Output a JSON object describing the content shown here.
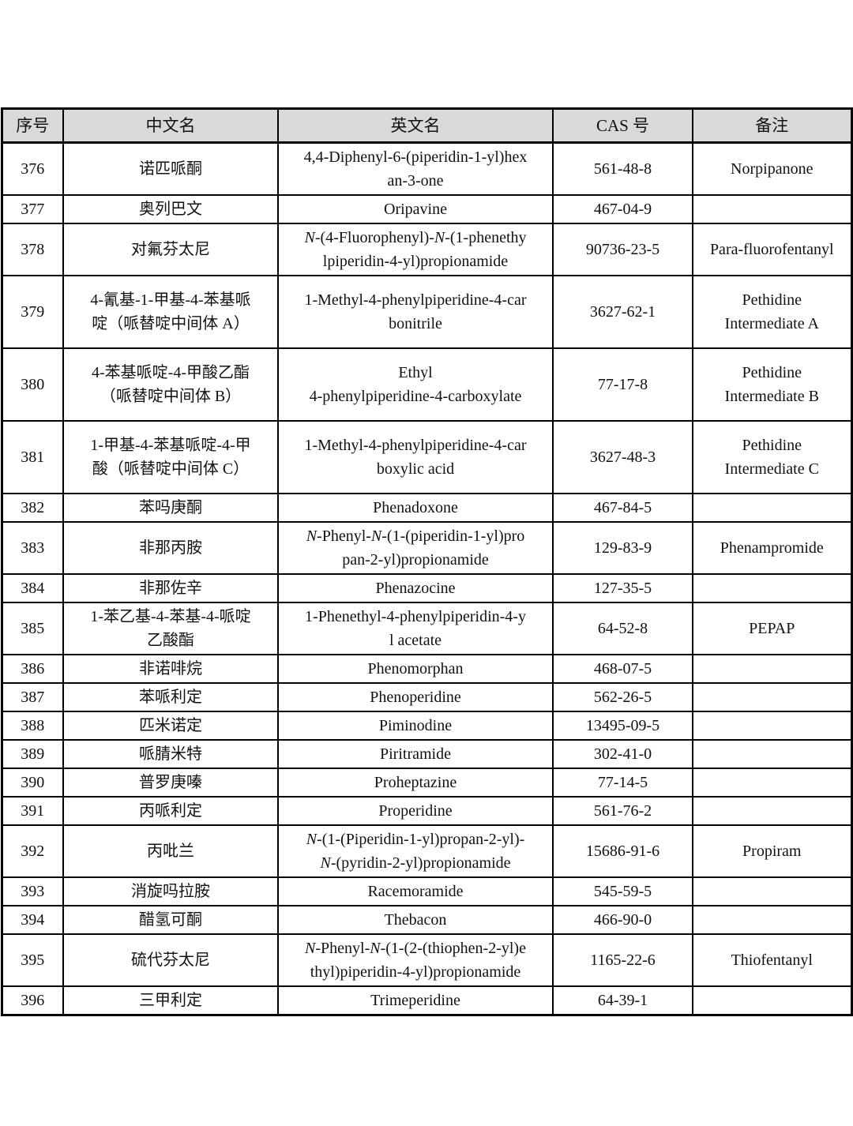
{
  "document": {
    "table": {
      "headers": [
        "序号",
        "中文名",
        "英文名",
        "CAS 号",
        "备注"
      ],
      "rows": [
        {
          "no": "376",
          "zh": [
            "诺匹哌酮"
          ],
          "en": [
            "4,4-Diphenyl-6-(piperidin-1-yl)hex",
            "an-3-one"
          ],
          "cas": "561-48-8",
          "remark": [
            "Norpipanone"
          ]
        },
        {
          "no": "377",
          "zh": [
            "奥列巴文"
          ],
          "en": [
            "Oripavine"
          ],
          "cas": "467-04-9",
          "remark": []
        },
        {
          "no": "378",
          "zh": [
            "对氟芬太尼"
          ],
          "en": [
            "N-(4-Fluorophenyl)-N-(1-phenethy",
            "lpiperidin-4-yl)propionamide"
          ],
          "cas": "90736-23-5",
          "remark": [
            "Para-fluorofentanyl"
          ]
        },
        {
          "no": "379",
          "zh": [
            "4-氰基-1-甲基-4-苯基哌",
            "啶（哌替啶中间体 A）"
          ],
          "en": [
            "1-Methyl-4-phenylpiperidine-4-car",
            "bonitrile"
          ],
          "cas": "3627-62-1",
          "remark": [
            "Pethidine",
            "Intermediate A"
          ]
        },
        {
          "no": "380",
          "zh": [
            "4-苯基哌啶-4-甲酸乙酯",
            "（哌替啶中间体 B）"
          ],
          "en": [
            "Ethyl",
            "4-phenylpiperidine-4-carboxylate"
          ],
          "cas": "77-17-8",
          "remark": [
            "Pethidine",
            "Intermediate B"
          ]
        },
        {
          "no": "381",
          "zh": [
            "1-甲基-4-苯基哌啶-4-甲",
            "酸（哌替啶中间体 C）"
          ],
          "en": [
            "1-Methyl-4-phenylpiperidine-4-car",
            "boxylic acid"
          ],
          "cas": "3627-48-3",
          "remark": [
            "Pethidine",
            "Intermediate C"
          ]
        },
        {
          "no": "382",
          "zh": [
            "苯吗庚酮"
          ],
          "en": [
            "Phenadoxone"
          ],
          "cas": "467-84-5",
          "remark": []
        },
        {
          "no": "383",
          "zh": [
            "非那丙胺"
          ],
          "en": [
            "N-Phenyl-N-(1-(piperidin-1-yl)pro",
            "pan-2-yl)propionamide"
          ],
          "cas": "129-83-9",
          "remark": [
            "Phenampromide"
          ]
        },
        {
          "no": "384",
          "zh": [
            "非那佐辛"
          ],
          "en": [
            "Phenazocine"
          ],
          "cas": "127-35-5",
          "remark": []
        },
        {
          "no": "385",
          "zh": [
            "1-苯乙基-4-苯基-4-哌啶",
            "乙酸酯"
          ],
          "en": [
            "1-Phenethyl-4-phenylpiperidin-4-y",
            "l acetate"
          ],
          "cas": "64-52-8",
          "remark": [
            "PEPAP"
          ]
        },
        {
          "no": "386",
          "zh": [
            "非诺啡烷"
          ],
          "en": [
            "Phenomorphan"
          ],
          "cas": "468-07-5",
          "remark": []
        },
        {
          "no": "387",
          "zh": [
            "苯哌利定"
          ],
          "en": [
            "Phenoperidine"
          ],
          "cas": "562-26-5",
          "remark": []
        },
        {
          "no": "388",
          "zh": [
            "匹米诺定"
          ],
          "en": [
            "Piminodine"
          ],
          "cas": "13495-09-5",
          "remark": []
        },
        {
          "no": "389",
          "zh": [
            "哌腈米特"
          ],
          "en": [
            "Piritramide"
          ],
          "cas": "302-41-0",
          "remark": []
        },
        {
          "no": "390",
          "zh": [
            "普罗庚嗪"
          ],
          "en": [
            "Proheptazine"
          ],
          "cas": "77-14-5",
          "remark": []
        },
        {
          "no": "391",
          "zh": [
            "丙哌利定"
          ],
          "en": [
            "Properidine"
          ],
          "cas": "561-76-2",
          "remark": []
        },
        {
          "no": "392",
          "zh": [
            "丙吡兰"
          ],
          "en": [
            "N-(1-(Piperidin-1-yl)propan-2-yl)-",
            "N-(pyridin-2-yl)propionamide"
          ],
          "cas": "15686-91-6",
          "remark": [
            "Propiram"
          ]
        },
        {
          "no": "393",
          "zh": [
            "消旋吗拉胺"
          ],
          "en": [
            "Racemoramide"
          ],
          "cas": "545-59-5",
          "remark": []
        },
        {
          "no": "394",
          "zh": [
            "醋氢可酮"
          ],
          "en": [
            "Thebacon"
          ],
          "cas": "466-90-0",
          "remark": []
        },
        {
          "no": "395",
          "zh": [
            "硫代芬太尼"
          ],
          "en": [
            "N-Phenyl-N-(1-(2-(thiophen-2-yl)e",
            "thyl)piperidin-4-yl)propionamide"
          ],
          "cas": "1165-22-6",
          "remark": [
            "Thiofentanyl"
          ]
        },
        {
          "no": "396",
          "zh": [
            "三甲利定"
          ],
          "en": [
            "Trimeperidine"
          ],
          "cas": "64-39-1",
          "remark": []
        }
      ]
    }
  }
}
